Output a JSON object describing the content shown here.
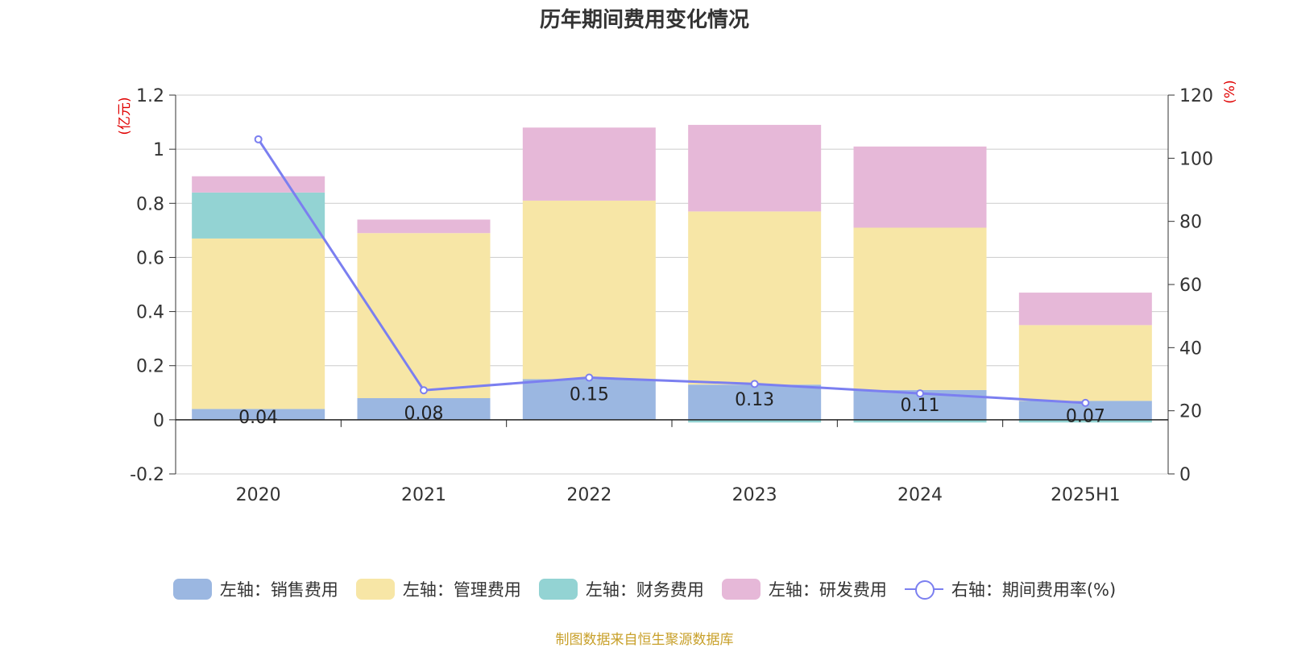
{
  "title": "历年期间费用变化情况",
  "source": "制图数据来自恒生聚源数据库",
  "colors": {
    "sales": "#9bb7e1",
    "admin": "#f7e6a6",
    "finance": "#93d3d3",
    "rd": "#e6b8d8",
    "rate": "#7b7ff0",
    "axis_unit": "#e00000",
    "grid": "#cccccc"
  },
  "chart_data": {
    "type": "bar",
    "stacked": true,
    "categories": [
      "2020",
      "2021",
      "2022",
      "2023",
      "2024",
      "2025H1"
    ],
    "left_axis": {
      "unit": "(亿元)",
      "ylim": [
        -0.2,
        1.2
      ],
      "ticks": [
        "-0.2",
        "0",
        "0.2",
        "0.4",
        "0.6",
        "0.8",
        "1",
        "1.2"
      ]
    },
    "right_axis": {
      "unit": "(%)",
      "ylim": [
        0,
        120
      ],
      "ticks": [
        "0",
        "20",
        "40",
        "60",
        "80",
        "100",
        "120"
      ]
    },
    "series": [
      {
        "name": "左轴：销售费用",
        "key": "sales",
        "axis": "left",
        "type": "bar",
        "values": [
          0.04,
          0.08,
          0.15,
          0.13,
          0.11,
          0.07
        ],
        "labels": [
          "0.04",
          "0.08",
          "0.15",
          "0.13",
          "0.11",
          "0.07"
        ]
      },
      {
        "name": "左轴：管理费用",
        "key": "admin",
        "axis": "left",
        "type": "bar",
        "values": [
          0.63,
          0.61,
          0.66,
          0.64,
          0.6,
          0.28
        ]
      },
      {
        "name": "左轴：财务费用",
        "key": "finance",
        "axis": "left",
        "type": "bar",
        "values": [
          0.17,
          0.0,
          0.0,
          -0.01,
          -0.01,
          -0.01
        ]
      },
      {
        "name": "左轴：研发费用",
        "key": "rd",
        "axis": "left",
        "type": "bar",
        "values": [
          0.06,
          0.05,
          0.27,
          0.32,
          0.3,
          0.12
        ]
      },
      {
        "name": "右轴：期间费用率(%)",
        "key": "rate",
        "axis": "right",
        "type": "line",
        "values": [
          106,
          26.5,
          30.5,
          28.5,
          25.5,
          22.5
        ]
      }
    ],
    "grid": true,
    "legend_position": "bottom"
  }
}
